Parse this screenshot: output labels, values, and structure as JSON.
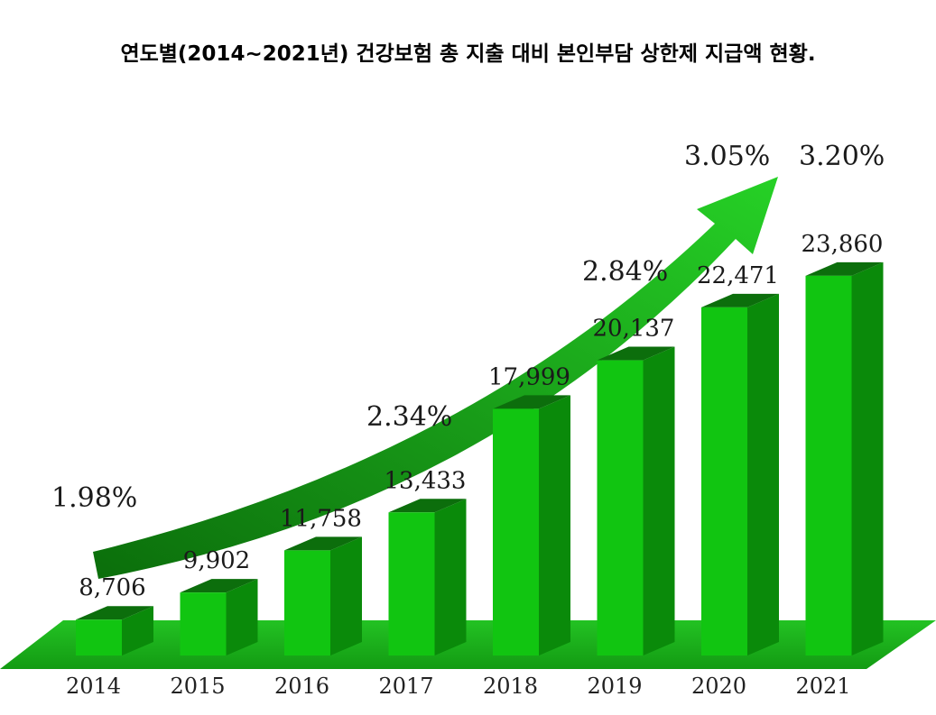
{
  "chart_data": {
    "type": "bar",
    "title": "연도별(2014~2021년) 건강보험 총 지출 대비 본인부담 상한제 지급액 현황.",
    "xlabel": "",
    "ylabel": "",
    "categories": [
      "2014",
      "2015",
      "2016",
      "2017",
      "2018",
      "2019",
      "2020",
      "2021"
    ],
    "values": [
      8706,
      9902,
      11758,
      13433,
      17999,
      20137,
      22471,
      23860
    ],
    "value_labels": [
      "8,706",
      "9,902",
      "11,758",
      "13,433",
      "17,999",
      "20,137",
      "22,471",
      "23,860"
    ],
    "ratios": [
      "1.98%",
      "2.34%",
      "2.84%",
      "3.05%",
      "3.20%"
    ],
    "ylim": [
      8000,
      26000
    ],
    "grid": false,
    "legend": "none",
    "colors": {
      "bar_front": "#11c511",
      "bar_side": "#0a8a0a",
      "bar_top": "#0c6e0c",
      "floor": "#1fb81f",
      "arrow_light": "#22cc22",
      "arrow_dark": "#0b6e0b"
    }
  }
}
